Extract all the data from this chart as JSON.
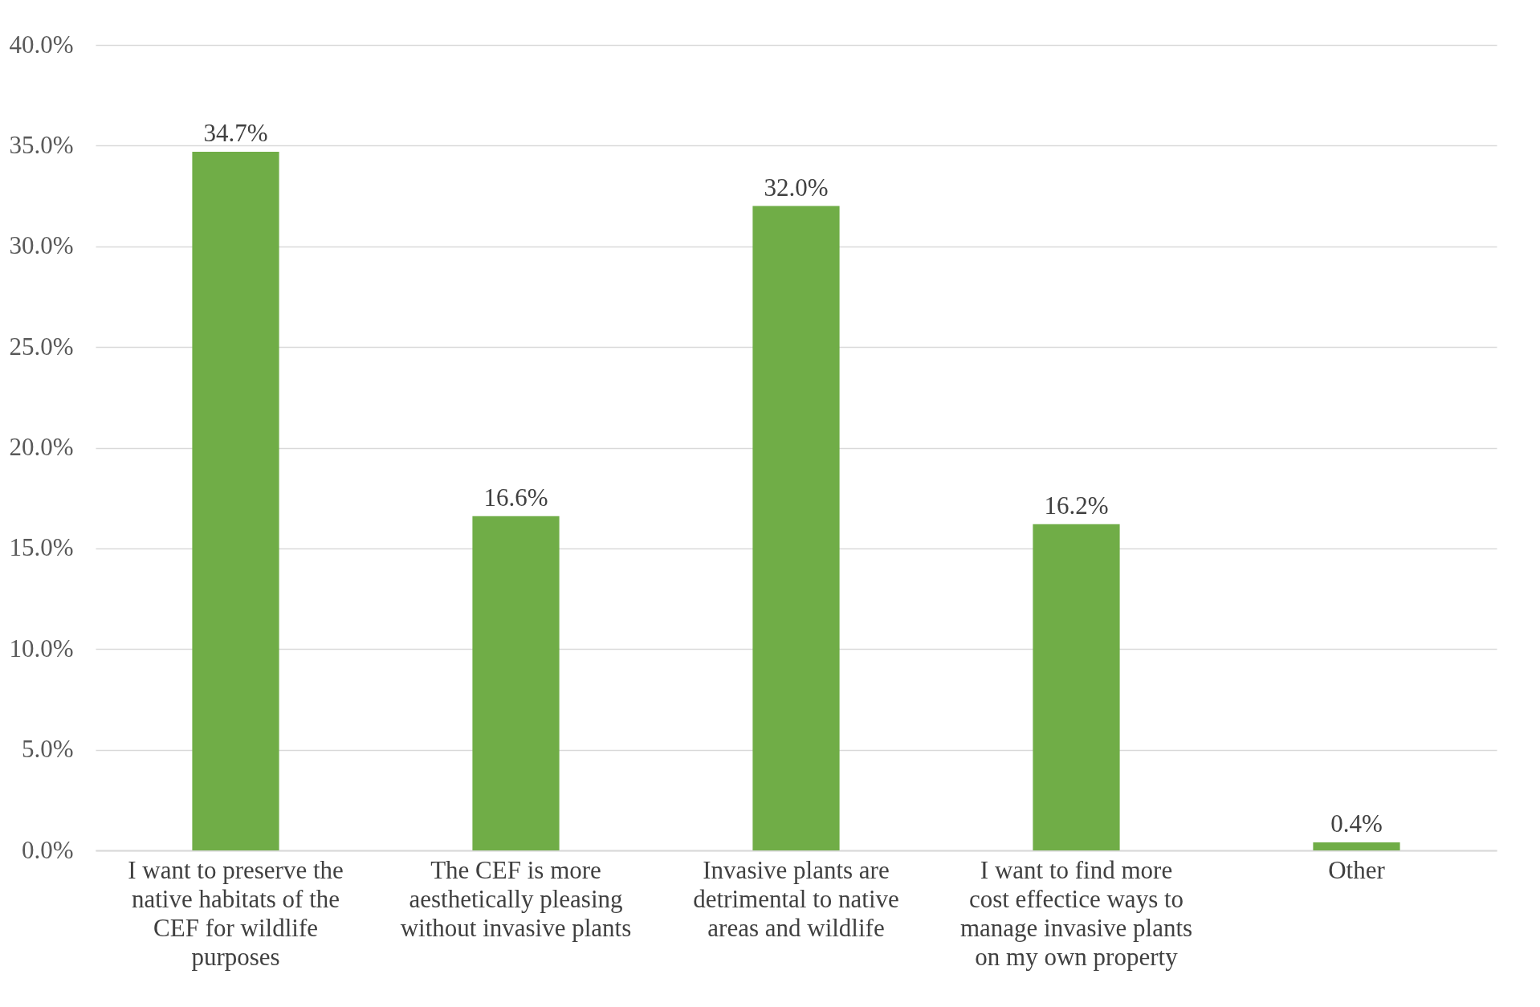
{
  "chart_data": {
    "type": "bar",
    "categories": [
      "I want to preserve the native habitats of the CEF for wildlife purposes",
      "The CEF is more aesthetically pleasing without invasive plants",
      "Invasive plants are detrimental to native areas and wildlife",
      "I want to find more cost effectice ways to manage invasive plants on my own property",
      "Other"
    ],
    "values": [
      34.7,
      16.6,
      32.0,
      16.2,
      0.4
    ],
    "value_labels": [
      "34.7%",
      "16.6%",
      "32.0%",
      "16.2%",
      "0.4%"
    ],
    "color": "#70ad47",
    "ylim": [
      0,
      40
    ],
    "yticks": [
      {
        "value": 0,
        "label": "0.0%"
      },
      {
        "value": 5,
        "label": "5.0%"
      },
      {
        "value": 10,
        "label": "10.0%"
      },
      {
        "value": 15,
        "label": "15.0%"
      },
      {
        "value": 20,
        "label": "20.0%"
      },
      {
        "value": 25,
        "label": "25.0%"
      },
      {
        "value": 30,
        "label": "30.0%"
      },
      {
        "value": 35,
        "label": "35.0%"
      },
      {
        "value": 40,
        "label": "40.0%"
      }
    ],
    "grid": "y"
  }
}
